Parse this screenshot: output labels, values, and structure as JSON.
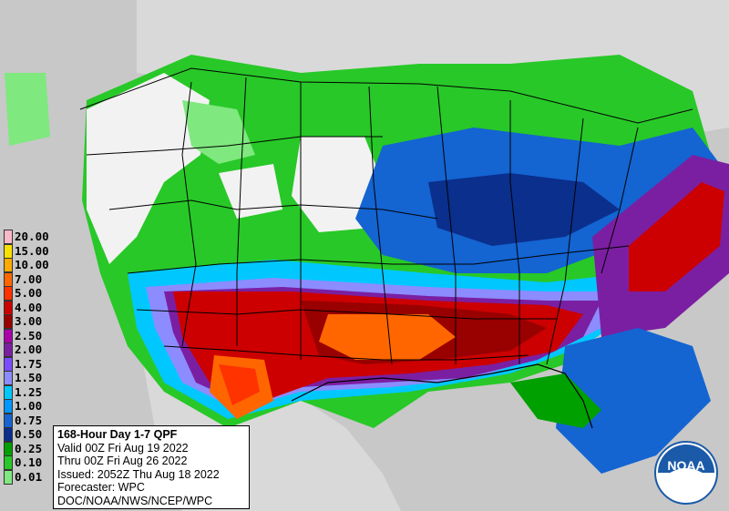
{
  "legend": {
    "title": "",
    "items": [
      {
        "label": "20.00",
        "color": "#fbb8c6"
      },
      {
        "label": "15.00",
        "color": "#f8e100"
      },
      {
        "label": "10.00",
        "color": "#ffaa00"
      },
      {
        "label": "7.00",
        "color": "#ff6600"
      },
      {
        "label": "5.00",
        "color": "#ff3300"
      },
      {
        "label": "4.00",
        "color": "#cc0000"
      },
      {
        "label": "3.00",
        "color": "#990000"
      },
      {
        "label": "2.50",
        "color": "#aa00aa"
      },
      {
        "label": "2.00",
        "color": "#7b1fa2"
      },
      {
        "label": "1.75",
        "color": "#7c4dff"
      },
      {
        "label": "1.50",
        "color": "#8c8cff"
      },
      {
        "label": "1.25",
        "color": "#00c8ff"
      },
      {
        "label": "1.00",
        "color": "#0096ff"
      },
      {
        "label": "0.75",
        "color": "#1464d2"
      },
      {
        "label": "0.50",
        "color": "#0a2f8c"
      },
      {
        "label": "0.25",
        "color": "#00a000"
      },
      {
        "label": "0.10",
        "color": "#28c828"
      },
      {
        "label": "0.01",
        "color": "#7fe87f"
      }
    ]
  },
  "info": {
    "title": "168-Hour Day 1-7 QPF",
    "valid": "Valid 00Z Fri Aug 19 2022",
    "thru": "Thru 00Z Fri Aug 26 2022",
    "issued": "Issued: 2052Z Thu Aug 18 2022",
    "forecaster": "Forecaster: WPC",
    "source": "DOC/NOAA/NWS/NCEP/WPC"
  },
  "logo": {
    "text": "NOAA",
    "color": "#1b5aa8"
  },
  "map_colors": {
    "ocean": "#c8c8c8",
    "land_dry": "#f2f2f2",
    "green_light": "#7fe87f",
    "green": "#28c828",
    "green_dark": "#00a000",
    "blue_dark": "#0a2f8c",
    "blue": "#1464d2",
    "blue_mid": "#0096ff",
    "cyan": "#00c8ff",
    "lavender": "#8c8cff",
    "purple": "#7b1fa2",
    "red_dark": "#990000",
    "red": "#cc0000",
    "orange": "#ff6600"
  }
}
